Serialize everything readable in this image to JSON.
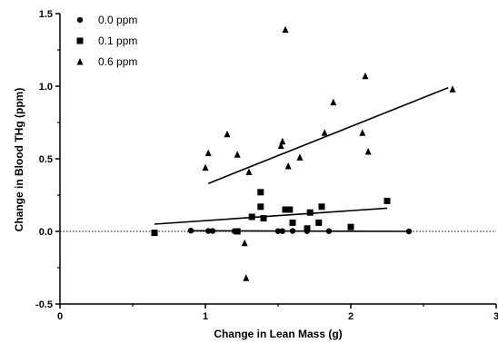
{
  "chart_data": {
    "type": "scatter",
    "xlabel": "Change in Lean Mass (g)",
    "ylabel": "Change in Blood THg (ppm)",
    "xlim": [
      0,
      3
    ],
    "ylim": [
      -0.5,
      1.5
    ],
    "x_ticks": [
      "0",
      "1",
      "2",
      "3"
    ],
    "y_ticks": [
      "-0.5",
      "0.0",
      "0.5",
      "1.0",
      "1.5"
    ],
    "grid": false,
    "legend_position": "top-left",
    "reference_line_y": 0,
    "series": [
      {
        "name": "0.0 ppm",
        "marker": "circle",
        "points": [
          [
            0.9,
            0.005
          ],
          [
            1.02,
            0.003
          ],
          [
            1.05,
            0.003
          ],
          [
            1.2,
            0.002
          ],
          [
            1.22,
            0.001
          ],
          [
            1.5,
            0.002
          ],
          [
            1.53,
            0.002
          ],
          [
            1.6,
            0.003
          ],
          [
            1.7,
            0.002
          ],
          [
            1.85,
            0.002
          ],
          [
            2.4,
            0.0
          ]
        ],
        "fit": [
          [
            0.9,
            0.004
          ],
          [
            2.4,
            0.0
          ]
        ]
      },
      {
        "name": "0.1 ppm",
        "marker": "square",
        "points": [
          [
            0.65,
            -0.01
          ],
          [
            1.22,
            0.0
          ],
          [
            1.32,
            0.1
          ],
          [
            1.38,
            0.27
          ],
          [
            1.38,
            0.17
          ],
          [
            1.4,
            0.09
          ],
          [
            1.55,
            0.15
          ],
          [
            1.58,
            0.15
          ],
          [
            1.6,
            0.06
          ],
          [
            1.7,
            0.02
          ],
          [
            1.72,
            0.13
          ],
          [
            1.78,
            0.06
          ],
          [
            1.8,
            0.17
          ],
          [
            2.0,
            0.03
          ],
          [
            2.25,
            0.21
          ]
        ],
        "fit": [
          [
            0.65,
            0.05
          ],
          [
            2.25,
            0.16
          ]
        ]
      },
      {
        "name": "0.6 ppm",
        "marker": "triangle",
        "points": [
          [
            1.0,
            0.44
          ],
          [
            1.02,
            0.54
          ],
          [
            1.15,
            0.67
          ],
          [
            1.22,
            0.53
          ],
          [
            1.27,
            -0.08
          ],
          [
            1.28,
            -0.32
          ],
          [
            1.3,
            0.41
          ],
          [
            1.52,
            0.59
          ],
          [
            1.53,
            0.62
          ],
          [
            1.55,
            1.39
          ],
          [
            1.57,
            0.45
          ],
          [
            1.65,
            0.51
          ],
          [
            1.82,
            0.68
          ],
          [
            1.88,
            0.89
          ],
          [
            2.08,
            0.68
          ],
          [
            2.1,
            1.07
          ],
          [
            2.12,
            0.55
          ],
          [
            2.7,
            0.98
          ]
        ],
        "fit": [
          [
            1.02,
            0.33
          ],
          [
            2.67,
            0.99
          ]
        ]
      }
    ]
  }
}
